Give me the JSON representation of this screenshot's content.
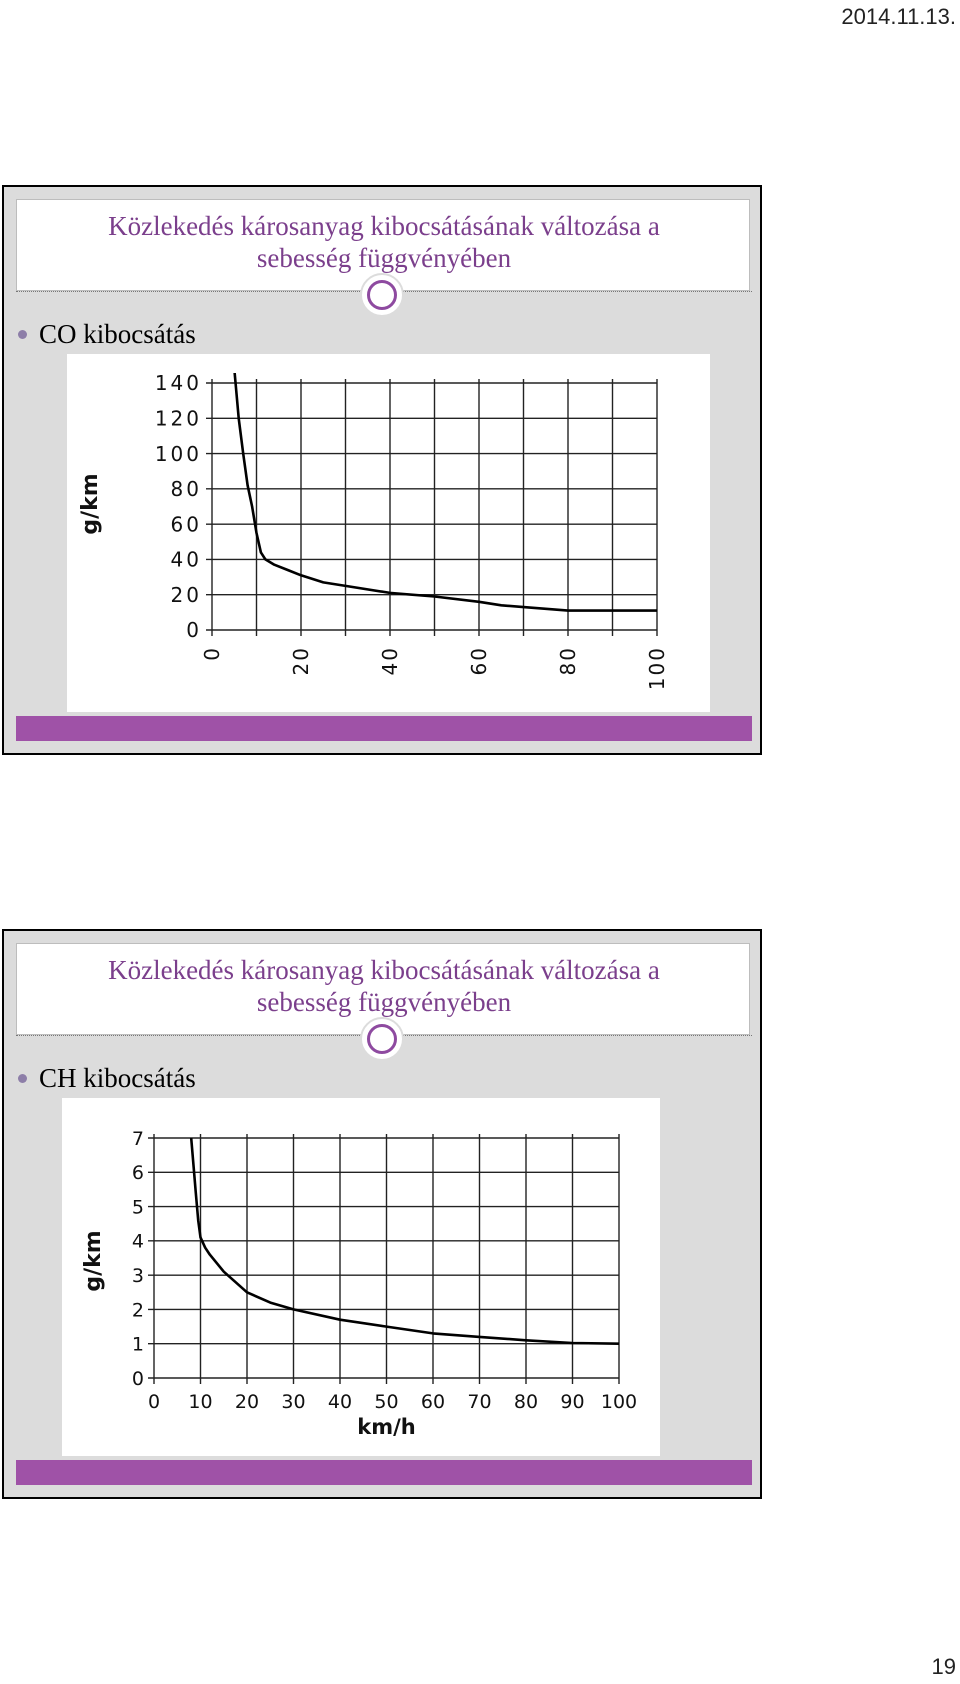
{
  "page": {
    "date": "2014.11.13.",
    "number": "19"
  },
  "slides": [
    {
      "title_line1": "Közlekedés károsanyag kibocsátásának változása a",
      "title_line2": "sebesség függvényében",
      "bullet": "CO kibocsátás"
    },
    {
      "title_line1": "Közlekedés károsanyag kibocsátásának változása a",
      "title_line2": "sebesség függvényében",
      "bullet": "CH kibocsátás"
    }
  ],
  "chart_data": [
    {
      "type": "line",
      "xlabel": "",
      "ylabel": "g/km",
      "xlim": [
        0,
        100
      ],
      "ylim": [
        0,
        140
      ],
      "x_ticks": [
        0,
        20,
        40,
        60,
        80,
        100
      ],
      "y_ticks": [
        0,
        20,
        40,
        60,
        80,
        100,
        120,
        140
      ],
      "grid": true,
      "series": [
        {
          "x": [
            5,
            6,
            7,
            8,
            9,
            10,
            11,
            12,
            14,
            17,
            20,
            25,
            30,
            40,
            50,
            60,
            65,
            70,
            75,
            80,
            90,
            100
          ],
          "y": [
            148,
            120,
            100,
            82,
            70,
            55,
            44,
            40,
            37,
            34,
            31,
            27,
            25,
            21,
            19,
            16,
            14,
            13,
            12,
            11,
            11,
            11
          ]
        }
      ]
    },
    {
      "type": "line",
      "xlabel": "km/h",
      "ylabel": "g/km",
      "xlim": [
        0,
        100
      ],
      "ylim": [
        0,
        7
      ],
      "x_ticks": [
        0,
        10,
        20,
        30,
        40,
        50,
        60,
        70,
        80,
        90,
        100
      ],
      "y_ticks": [
        0,
        1,
        2,
        3,
        4,
        5,
        6,
        7
      ],
      "grid": true,
      "series": [
        {
          "x": [
            8,
            8.5,
            9,
            9.5,
            10,
            11,
            12,
            15,
            20,
            25,
            30,
            40,
            50,
            60,
            70,
            80,
            90,
            100
          ],
          "y": [
            7,
            6.2,
            5.4,
            4.6,
            4.1,
            3.8,
            3.6,
            3.1,
            2.5,
            2.2,
            2.0,
            1.7,
            1.5,
            1.3,
            1.2,
            1.1,
            1.02,
            1.0
          ]
        }
      ]
    }
  ]
}
